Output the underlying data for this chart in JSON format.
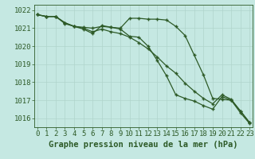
{
  "title": "Graphe pression niveau de la mer (hPa)",
  "x": [
    0,
    1,
    2,
    3,
    4,
    5,
    6,
    7,
    8,
    9,
    10,
    11,
    12,
    13,
    14,
    15,
    16,
    17,
    18,
    19,
    20,
    21,
    22,
    23
  ],
  "line1": [
    1021.75,
    1021.65,
    1021.65,
    1021.3,
    1021.1,
    1021.05,
    1021.0,
    1021.1,
    1021.05,
    1021.0,
    1021.55,
    1021.55,
    1021.5,
    1021.5,
    1021.45,
    1021.1,
    1020.6,
    1019.5,
    1018.4,
    1017.1,
    1017.05,
    1017.0,
    1016.4,
    1015.75
  ],
  "line2": [
    1021.75,
    1021.65,
    1021.65,
    1021.3,
    1021.1,
    1021.0,
    1020.8,
    1020.95,
    1020.8,
    1020.7,
    1020.5,
    1020.2,
    1019.85,
    1019.4,
    1018.9,
    1018.5,
    1017.95,
    1017.5,
    1017.1,
    1016.8,
    1017.3,
    1017.05,
    1016.4,
    1015.75
  ],
  "line3": [
    1021.75,
    1021.65,
    1021.65,
    1021.25,
    1021.1,
    1020.95,
    1020.7,
    1021.15,
    1021.05,
    1020.95,
    1020.55,
    1020.5,
    1020.0,
    1019.2,
    1018.35,
    1017.3,
    1017.1,
    1016.95,
    1016.7,
    1016.5,
    1017.2,
    1017.0,
    1016.3,
    1015.7
  ],
  "line_color": "#2d5a27",
  "bg_color": "#c5e8e2",
  "grid_color": "#b0d4cc",
  "ylim": [
    1015.5,
    1022.3
  ],
  "yticks": [
    1016,
    1017,
    1018,
    1019,
    1020,
    1021,
    1022
  ],
  "xticks": [
    0,
    1,
    2,
    3,
    4,
    5,
    6,
    7,
    8,
    9,
    10,
    11,
    12,
    13,
    14,
    15,
    16,
    17,
    18,
    19,
    20,
    21,
    22,
    23
  ],
  "title_fontsize": 7.5,
  "tick_fontsize": 6.5,
  "marker": "+"
}
